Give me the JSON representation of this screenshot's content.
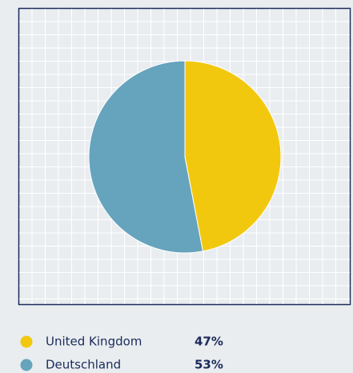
{
  "chart_data": {
    "type": "pie",
    "categories": [
      "United Kingdom",
      "Deutschland"
    ],
    "values": [
      47,
      53
    ],
    "value_labels": [
      "47%",
      "53%"
    ],
    "colors": [
      "#f2c80f",
      "#66a3bd"
    ]
  }
}
